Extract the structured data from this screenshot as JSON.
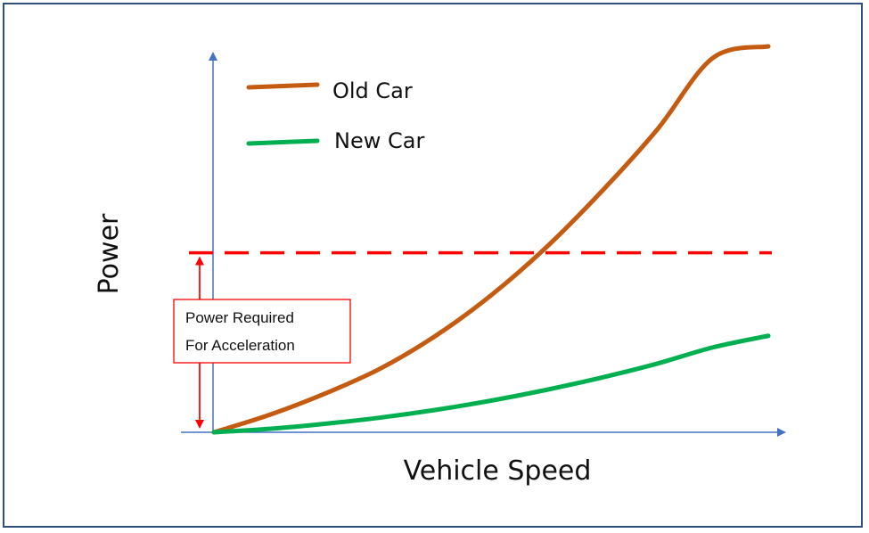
{
  "chart_data": {
    "type": "line",
    "title": "",
    "xlabel": "Vehicle Speed",
    "ylabel": "Power",
    "xlim": [
      0,
      1
    ],
    "ylim": [
      0,
      1
    ],
    "grid": false,
    "legend_position": "top-left",
    "x": [
      0,
      0.1,
      0.2,
      0.3,
      0.4,
      0.5,
      0.6,
      0.7,
      0.8,
      0.9,
      1.0
    ],
    "series": [
      {
        "name": "Old Car",
        "color": "#c55a11",
        "values": [
          0,
          0.045,
          0.1,
          0.165,
          0.25,
          0.355,
          0.48,
          0.625,
          0.785,
          0.97,
          1.0
        ]
      },
      {
        "name": "New Car",
        "color": "#00b050",
        "values": [
          0,
          0.009,
          0.022,
          0.038,
          0.058,
          0.082,
          0.11,
          0.142,
          0.178,
          0.22,
          0.25
        ]
      }
    ],
    "threshold": {
      "value": 0.465,
      "color": "#ff0000",
      "style": "dashed"
    },
    "annotation": {
      "lines": [
        "Power Required",
        "For Acceleration"
      ],
      "color": "#ff0000"
    },
    "axis_color": "#4472c4"
  }
}
